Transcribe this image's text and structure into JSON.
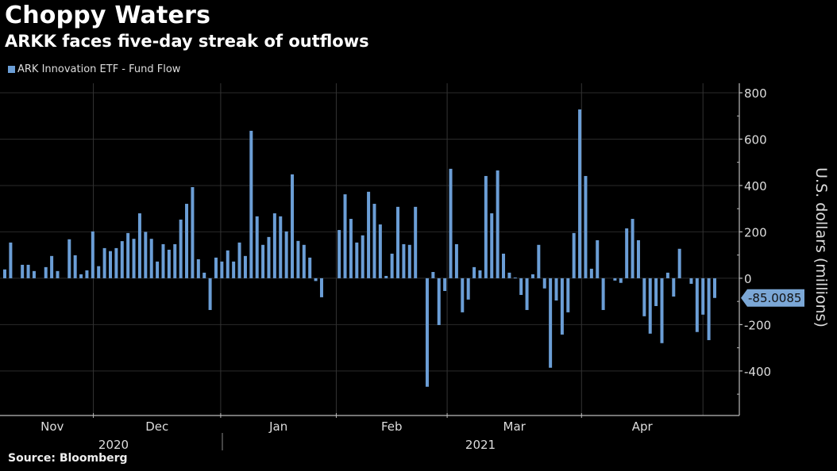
{
  "header": {
    "title": "Choppy Waters",
    "subtitle": "ARKK faces five-day streak of outflows"
  },
  "legend": {
    "label": "ARK Innovation ETF - Fund Flow"
  },
  "footer": {
    "source": "Source: Bloomberg"
  },
  "colors": {
    "bar": "#6b9ed6",
    "badge": "#7ba7d6",
    "axis": "#bbbbbb",
    "grid": "#2a2a2a"
  },
  "chart_data": {
    "type": "bar",
    "title": "Choppy Waters",
    "subtitle": "ARKK faces five-day streak of outflows",
    "xlabel": "",
    "ylabel": "U.S. dollars (millions)",
    "ylim": [
      -592,
      841
    ],
    "yticks": [
      800,
      600,
      400,
      200,
      0,
      -200,
      -400
    ],
    "grid": true,
    "legend_position": "top-left",
    "series": [
      {
        "name": "ARK Innovation ETF - Fund Flow",
        "values": [
          38,
          154,
          null,
          58,
          58,
          31,
          null,
          48,
          96,
          31,
          null,
          168,
          99,
          17,
          34,
          202,
          52,
          130,
          117,
          130,
          160,
          195,
          170,
          280,
          200,
          170,
          72,
          147,
          123,
          147,
          253,
          321,
          393,
          82,
          24,
          -137,
          89,
          72,
          120,
          72,
          154,
          96,
          636,
          267,
          144,
          178,
          280,
          267,
          202,
          448,
          161,
          144,
          89,
          -12,
          -82,
          null,
          null,
          208,
          362,
          256,
          154,
          185,
          373,
          321,
          232,
          10,
          106,
          308,
          147,
          144,
          308,
          null,
          -468,
          27,
          -202,
          -55,
          472,
          147,
          -147,
          -92,
          48,
          34,
          441,
          280,
          465,
          106,
          24,
          3,
          -72,
          -137,
          17,
          144,
          -44,
          -386,
          -96,
          -243,
          -147,
          195,
          728,
          441,
          41,
          164,
          -137,
          null,
          -10,
          -20,
          215,
          256,
          164,
          -164,
          -239,
          -120,
          -280,
          24,
          -79,
          127,
          null,
          -24,
          -232,
          -157,
          -267,
          -85.0085
        ]
      }
    ],
    "month_ticks": [
      {
        "label": "Nov",
        "start_index": -0.5,
        "end_index": 15.1
      },
      {
        "label": "Dec",
        "start_index": 15.1,
        "end_index": 36.8
      },
      {
        "label": "Jan",
        "start_index": 36.8,
        "end_index": 56.5
      },
      {
        "label": "Feb",
        "start_index": 56.5,
        "end_index": 75.4
      },
      {
        "label": "Mar",
        "start_index": 75.4,
        "end_index": 98.3
      },
      {
        "label": "Apr",
        "start_index": 98.3,
        "end_index": 119
      }
    ],
    "year_labels": [
      {
        "label": "2020"
      },
      {
        "label": "2021"
      }
    ],
    "last_value_label": "-85.0085"
  }
}
